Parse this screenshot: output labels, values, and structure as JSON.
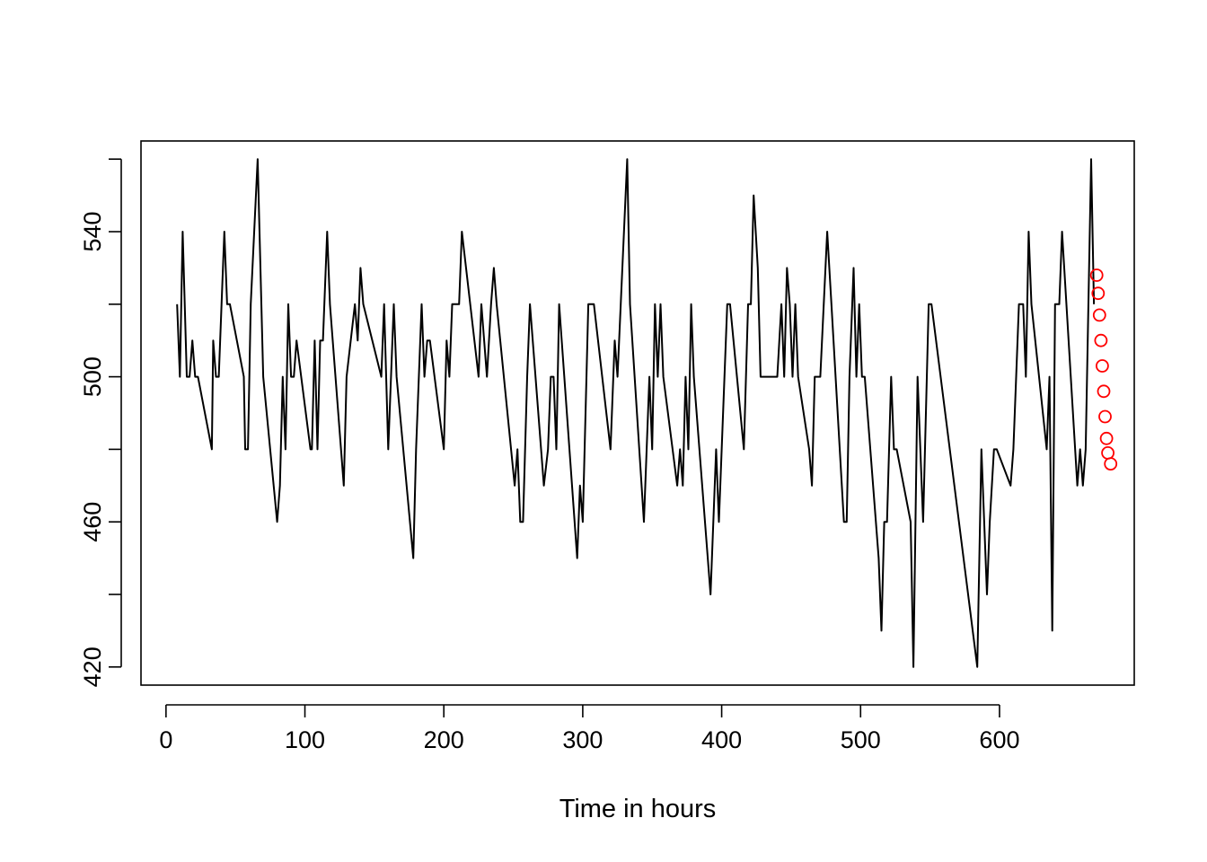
{
  "chart_data": {
    "type": "line",
    "title": "",
    "xlabel": "Time in hours",
    "ylabel": "",
    "xlim": [
      -18,
      697
    ],
    "ylim": [
      415,
      565
    ],
    "x_ticks": [
      0,
      100,
      200,
      300,
      400,
      500,
      600
    ],
    "y_ticks": [
      420,
      440,
      460,
      480,
      500,
      520,
      540,
      560
    ],
    "y_tick_labels": [
      {
        "value": 420,
        "text": "420"
      },
      {
        "value": 460,
        "text": "460"
      },
      {
        "value": 500,
        "text": "500"
      },
      {
        "value": 540,
        "text": "540"
      }
    ],
    "grid": false,
    "legend": "none",
    "colors": {
      "series": "#000000",
      "points": "#ff0000"
    },
    "series": [
      {
        "style": "line",
        "x": [
          8,
          10,
          12,
          15,
          17,
          19,
          21,
          23,
          33,
          34,
          36,
          38,
          40,
          42,
          44,
          46,
          56,
          57,
          59,
          61,
          66,
          70,
          80,
          82,
          84,
          86,
          88,
          90,
          92,
          94,
          104,
          105,
          107,
          109,
          111,
          113,
          116,
          118,
          128,
          130,
          136,
          138,
          140,
          142,
          155,
          157,
          160,
          164,
          166,
          178,
          180,
          184,
          186,
          188,
          190,
          200,
          202,
          204,
          206,
          208,
          211,
          213,
          225,
          227,
          231,
          234,
          236,
          238,
          251,
          253,
          255,
          257,
          260,
          262,
          272,
          275,
          277,
          279,
          281,
          283,
          296,
          298,
          300,
          304,
          306,
          308,
          320,
          323,
          325,
          332,
          334,
          344,
          348,
          350,
          352,
          354,
          356,
          358,
          368,
          370,
          372,
          374,
          376,
          378,
          380,
          392,
          396,
          398,
          400,
          404,
          406,
          416,
          419,
          421,
          423,
          426,
          428,
          430,
          440,
          443,
          445,
          447,
          449,
          451,
          453,
          455,
          463,
          465,
          467,
          469,
          471,
          476,
          479,
          488,
          490,
          492,
          495,
          497,
          499,
          501,
          503,
          513,
          515,
          517,
          519,
          522,
          524,
          526,
          536,
          538,
          541,
          543,
          545,
          549,
          551,
          584,
          587,
          591,
          593,
          596,
          598,
          608,
          610,
          614,
          617,
          619,
          621,
          623,
          634,
          636,
          638,
          640,
          643,
          645,
          656,
          658,
          660,
          662,
          666,
          668
        ],
        "y": [
          520,
          500,
          540,
          500,
          500,
          510,
          500,
          500,
          480,
          510,
          500,
          500,
          520,
          540,
          520,
          520,
          500,
          480,
          480,
          520,
          560,
          500,
          460,
          470,
          500,
          480,
          520,
          500,
          500,
          510,
          480,
          480,
          510,
          480,
          510,
          510,
          540,
          520,
          470,
          500,
          520,
          510,
          530,
          520,
          500,
          520,
          480,
          520,
          500,
          450,
          480,
          520,
          500,
          510,
          510,
          480,
          510,
          500,
          520,
          520,
          520,
          540,
          500,
          520,
          500,
          520,
          530,
          520,
          470,
          480,
          460,
          460,
          500,
          520,
          470,
          480,
          500,
          500,
          480,
          520,
          450,
          470,
          460,
          520,
          520,
          520,
          480,
          510,
          500,
          560,
          520,
          460,
          500,
          480,
          520,
          500,
          520,
          500,
          470,
          480,
          470,
          500,
          480,
          520,
          500,
          440,
          480,
          460,
          480,
          520,
          520,
          480,
          520,
          520,
          550,
          530,
          500,
          500,
          500,
          520,
          500,
          530,
          520,
          500,
          520,
          500,
          480,
          470,
          500,
          500,
          500,
          540,
          520,
          460,
          460,
          500,
          530,
          500,
          520,
          500,
          500,
          450,
          430,
          460,
          460,
          500,
          480,
          480,
          460,
          420,
          500,
          480,
          460,
          520,
          520,
          420,
          480,
          440,
          460,
          480,
          480,
          470,
          480,
          520,
          520,
          500,
          540,
          520,
          480,
          500,
          430,
          520,
          520,
          540,
          470,
          480,
          470,
          480,
          560,
          520
        ]
      },
      {
        "style": "points",
        "x": [
          670,
          671,
          672,
          673,
          674,
          675,
          676,
          677,
          678,
          680
        ],
        "y": [
          528,
          523,
          517,
          510,
          503,
          496,
          489,
          483,
          479,
          476
        ]
      }
    ]
  }
}
